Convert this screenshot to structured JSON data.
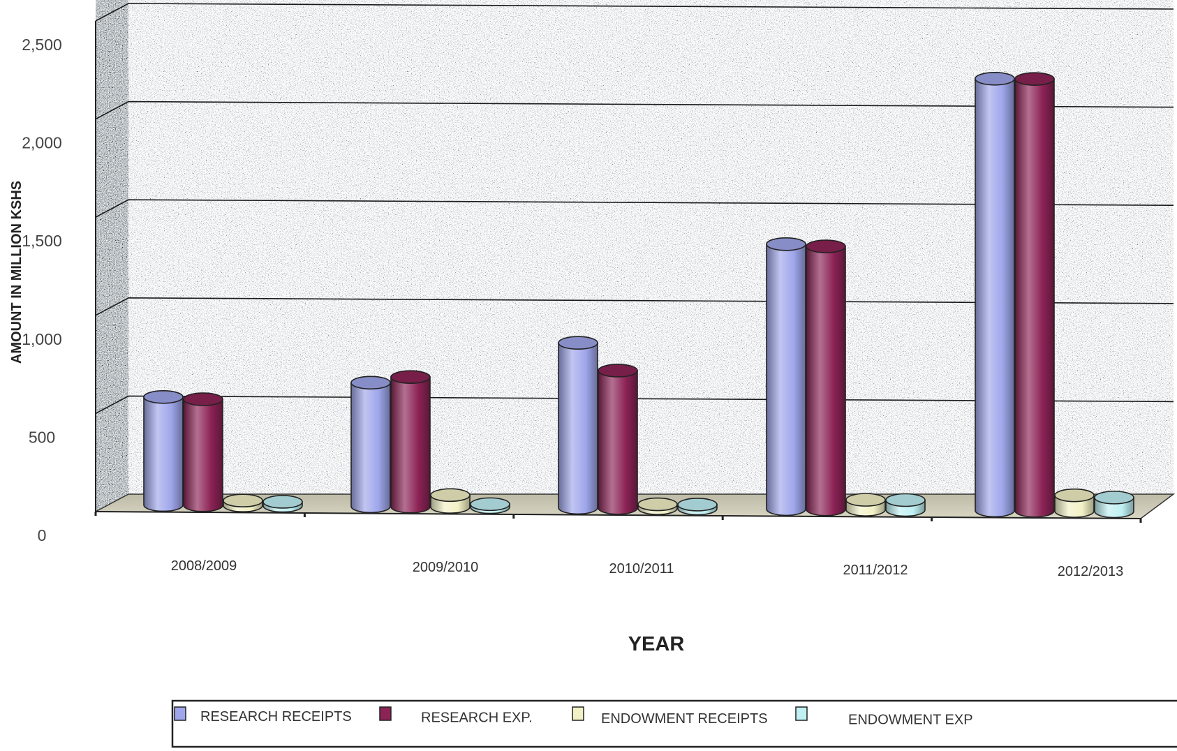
{
  "chart_data": {
    "type": "bar",
    "style": "3d-cylinder",
    "categories": [
      "2008/2009",
      "2009/2010",
      "2010/2011",
      "2011/2012",
      "2012/2013"
    ],
    "series": [
      {
        "name": "RESEARCH RECEIPTS",
        "color": "#9fa6ea",
        "values": [
          550,
          630,
          840,
          1350,
          2200
        ]
      },
      {
        "name": "RESEARCH EXP.",
        "color": "#8c2356",
        "values": [
          540,
          660,
          700,
          1340,
          2200
        ]
      },
      {
        "name": "ENDOWMENT RECEIPTS",
        "color": "#f2f1c6",
        "values": [
          25,
          60,
          20,
          50,
          80
        ]
      },
      {
        "name": "ENDOWMENT EXP",
        "color": "#bff0f3",
        "values": [
          20,
          15,
          20,
          50,
          70
        ]
      }
    ],
    "xlabel": "YEAR",
    "ylabel": "AMOUNT IN MILLION KSHS",
    "ylim": [
      0,
      2500
    ],
    "yticks": [
      "0",
      "500",
      "1,000",
      "1,500",
      "2,000",
      "2,500"
    ],
    "grid": true,
    "legend_position": "bottom"
  }
}
